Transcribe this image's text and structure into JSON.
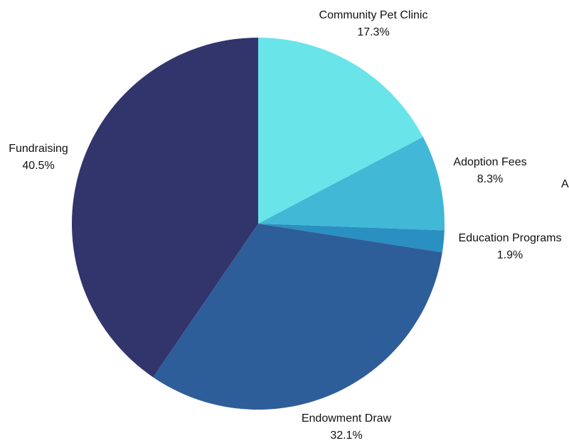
{
  "chart_data": {
    "type": "pie",
    "title": "",
    "start_angle_deg": 0,
    "direction": "clockwise",
    "slices": [
      {
        "name": "Community Pet Clinic",
        "percent_label": "17.3%",
        "value": 17.3,
        "color": "#69e4e9"
      },
      {
        "name": "Adoption Fees",
        "percent_label": "8.3%",
        "value": 8.3,
        "color": "#42b8d7"
      },
      {
        "name": "Education Programs",
        "percent_label": "1.9%",
        "value": 1.9,
        "color": "#2a8fc1"
      },
      {
        "name": "Endowment Draw",
        "percent_label": "32.1%",
        "value": 32.1,
        "color": "#2e5e99"
      },
      {
        "name": "Fundraising",
        "percent_label": "40.5%",
        "value": 40.5,
        "color": "#31356c"
      }
    ],
    "stray_text": "A"
  }
}
